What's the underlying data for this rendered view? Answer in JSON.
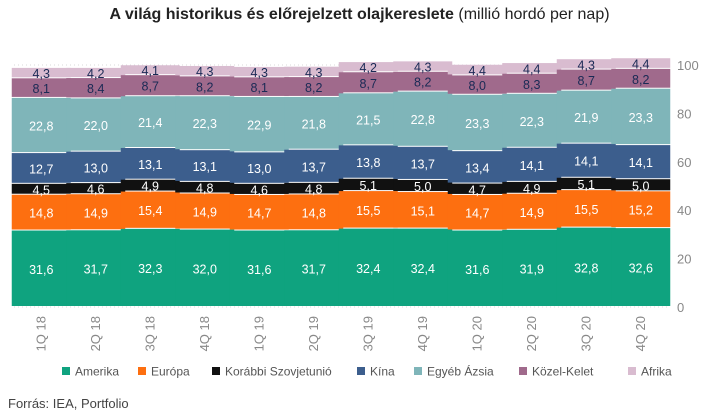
{
  "title": "A világ historikus és előrejelzett olajkereslete",
  "subtitle": "(millió hordó per nap)",
  "source": "Forrás: IEA, Portfolio",
  "chart_data": {
    "type": "bar",
    "stacked": true,
    "categories": [
      "1Q 18",
      "2Q 18",
      "3Q 18",
      "4Q 18",
      "1Q 19",
      "2Q 19",
      "3Q 19",
      "4Q 19",
      "1Q 20",
      "2Q 20",
      "3Q 20",
      "4Q 20"
    ],
    "ylim": [
      0,
      100
    ],
    "yticks": [
      0,
      20,
      40,
      60,
      80,
      100
    ],
    "y_axis_side": "right",
    "grid": true,
    "legend_position": "bottom",
    "series": [
      {
        "name": "Amerika",
        "color": "#0fa37f",
        "label_color": "#ffffff",
        "values": [
          31.6,
          31.7,
          32.3,
          32.0,
          31.6,
          31.7,
          32.4,
          32.4,
          31.6,
          31.9,
          32.8,
          32.6
        ],
        "labels": [
          "31,6",
          "31,7",
          "32,3",
          "32,0",
          "31,6",
          "31,7",
          "32,4",
          "32,4",
          "31,6",
          "31,9",
          "32,8",
          "32,6"
        ]
      },
      {
        "name": "Európa",
        "color": "#fd6f10",
        "label_color": "#ffffff",
        "values": [
          14.8,
          14.9,
          15.4,
          14.9,
          14.7,
          14.8,
          15.5,
          15.1,
          14.7,
          14.9,
          15.5,
          15.2
        ],
        "labels": [
          "14,8",
          "14,9",
          "15,4",
          "14,9",
          "14,7",
          "14,8",
          "15,5",
          "15,1",
          "14,7",
          "14,9",
          "15,5",
          "15,2"
        ]
      },
      {
        "name": "Korábbi Szovjetunió",
        "color": "#111111",
        "label_color": "#ffffff",
        "values": [
          4.5,
          4.6,
          4.9,
          4.8,
          4.6,
          4.8,
          5.1,
          5.0,
          4.7,
          4.9,
          5.1,
          5.0
        ],
        "labels": [
          "4,5",
          "4,6",
          "4,9",
          "4,8",
          "4,6",
          "4,8",
          "5,1",
          "5,0",
          "4,7",
          "4,9",
          "5,1",
          "5,0"
        ]
      },
      {
        "name": "Kína",
        "color": "#3c5e8d",
        "label_color": "#ffffff",
        "values": [
          12.7,
          13.0,
          13.1,
          13.1,
          13.0,
          13.7,
          13.8,
          13.7,
          13.4,
          14.1,
          14.1,
          14.1
        ],
        "labels": [
          "12,7",
          "13,0",
          "13,1",
          "13,1",
          "13,0",
          "13,7",
          "13,8",
          "13,7",
          "13,4",
          "14,1",
          "14,1",
          "14,1"
        ]
      },
      {
        "name": "Egyéb Ázsia",
        "color": "#7fb5b9",
        "label_color": "#ffffff",
        "values": [
          22.8,
          22.0,
          21.4,
          22.3,
          22.9,
          21.8,
          21.5,
          22.8,
          23.3,
          22.3,
          21.9,
          23.3
        ],
        "labels": [
          "22,8",
          "22,0",
          "21,4",
          "22,3",
          "22,9",
          "21,8",
          "21,5",
          "22,8",
          "23,3",
          "22,3",
          "21,9",
          "23,3"
        ]
      },
      {
        "name": "Közel-Kelet",
        "color": "#a06a8c",
        "label_color": "#1a2a55",
        "values": [
          8.1,
          8.4,
          8.7,
          8.2,
          8.1,
          8.2,
          8.7,
          8.2,
          8.0,
          8.3,
          8.7,
          8.2
        ],
        "labels": [
          "8,1",
          "8,4",
          "8,7",
          "8,2",
          "8,1",
          "8,2",
          "8,7",
          "8,2",
          "8,0",
          "8,3",
          "8,7",
          "8,2"
        ]
      },
      {
        "name": "Afrika",
        "color": "#d9bcd0",
        "label_color": "#1a2a55",
        "values": [
          4.3,
          4.2,
          4.1,
          4.3,
          4.3,
          4.3,
          4.2,
          4.3,
          4.4,
          4.4,
          4.3,
          4.4
        ],
        "labels": [
          "4,3",
          "4,2",
          "4,1",
          "4,3",
          "4,3",
          "4,3",
          "4,2",
          "4,3",
          "4,4",
          "4,4",
          "4,3",
          "4,4"
        ]
      }
    ]
  }
}
